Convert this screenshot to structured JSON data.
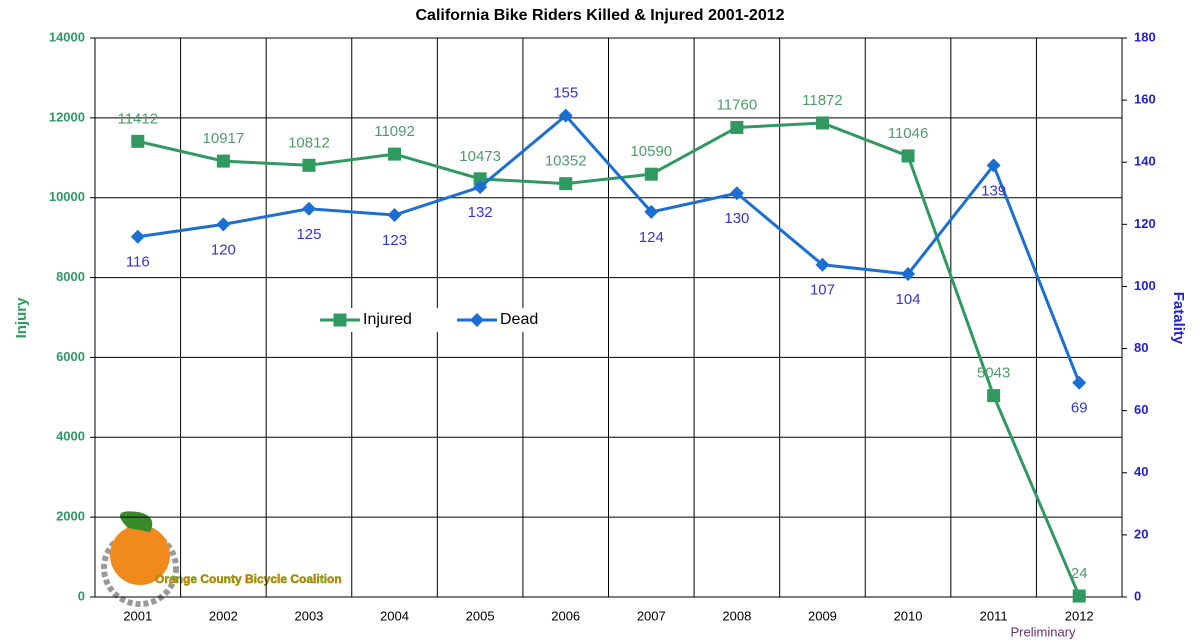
{
  "chart_data": {
    "type": "line",
    "title": "California Bike Riders Killed & Injured 2001-2012",
    "ylabel": "Injury",
    "y2label": "Fatality",
    "annotation": "Preliminary",
    "logo_text": "Orange County Bicycle Coalition",
    "categories": [
      "2001",
      "2002",
      "2003",
      "2004",
      "2005",
      "2006",
      "2007",
      "2008",
      "2009",
      "2010",
      "2011",
      "2012"
    ],
    "series": [
      {
        "name": "Injured",
        "color": "#2f9960",
        "label_color": "#4f9c6a",
        "marker": "square",
        "values": [
          11412,
          10917,
          10812,
          11092,
          10473,
          10352,
          10590,
          11760,
          11872,
          11046,
          5043,
          24
        ]
      },
      {
        "name": "Dead",
        "color": "#1b6fd0",
        "label_color": "#3535d0",
        "marker": "diamond",
        "axis": "y2",
        "values": [
          116,
          120,
          125,
          123,
          132,
          155,
          124,
          130,
          107,
          104,
          139,
          69
        ]
      }
    ],
    "ylim": [
      0,
      14000
    ],
    "yticks": [
      0,
      2000,
      4000,
      6000,
      8000,
      10000,
      12000,
      14000
    ],
    "y2lim": [
      0,
      180
    ],
    "y2ticks": [
      0,
      20,
      40,
      60,
      80,
      100,
      120,
      140,
      160,
      180
    ],
    "grid": true,
    "legend": "center"
  }
}
